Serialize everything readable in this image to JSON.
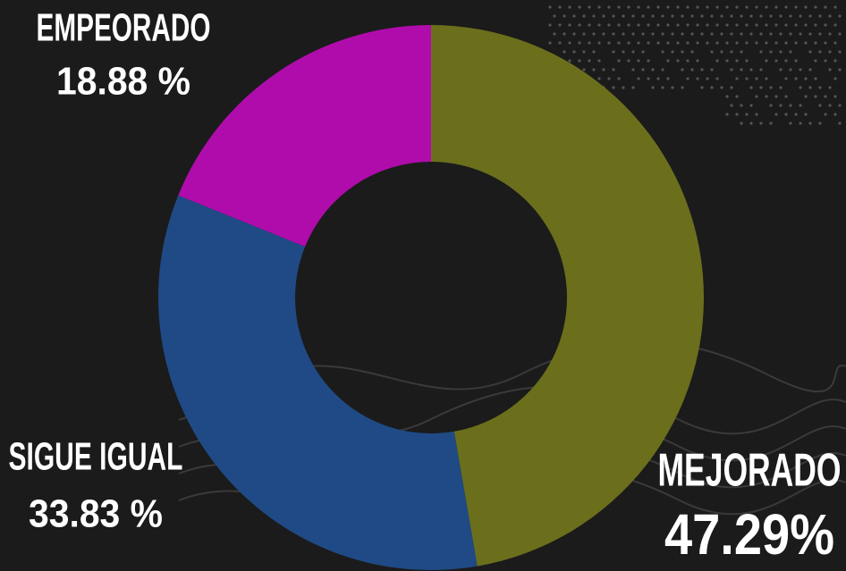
{
  "chart_data": {
    "type": "donut",
    "categories": [
      "MEJORADO",
      "SIGUE IGUAL",
      "EMPEORADO"
    ],
    "values": [
      47.29,
      33.83,
      18.88
    ],
    "value_labels": [
      "47.29%",
      "33.83 %",
      "18.88 %"
    ],
    "colors": [
      "#6b6f1c",
      "#1f4a85",
      "#b00cab"
    ]
  }
}
